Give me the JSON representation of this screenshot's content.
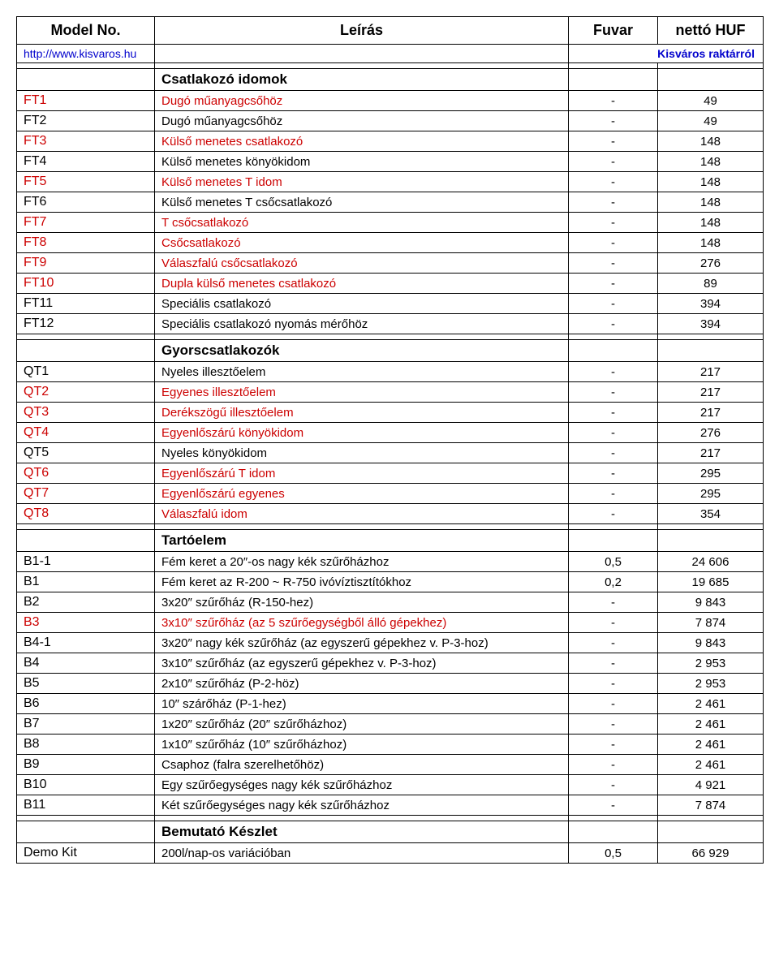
{
  "header": {
    "model": "Model No.",
    "desc": "Leírás",
    "fuvar": "Fuvar",
    "price": "nettó HUF",
    "link": "http://www.kisvaros.hu",
    "stock": "Kisváros raktárról"
  },
  "sections": [
    {
      "title": "Csatlakozó idomok",
      "rows": [
        {
          "model": "FT1",
          "desc": "Dugó műanyagcsőhöz",
          "fuvar": "-",
          "price": "49",
          "color": "red"
        },
        {
          "model": "FT2",
          "desc": "Dugó műanyagcsőhöz",
          "fuvar": "-",
          "price": "49",
          "color": "black"
        },
        {
          "model": "FT3",
          "desc": "Külső menetes csatlakozó",
          "fuvar": "-",
          "price": "148",
          "color": "red"
        },
        {
          "model": "FT4",
          "desc": "Külső menetes könyökidom",
          "fuvar": "-",
          "price": "148",
          "color": "black"
        },
        {
          "model": "FT5",
          "desc": "Külső menetes T idom",
          "fuvar": "-",
          "price": "148",
          "color": "red"
        },
        {
          "model": "FT6",
          "desc": "Külső menetes T csőcsatlakozó",
          "fuvar": "-",
          "price": "148",
          "color": "black"
        },
        {
          "model": "FT7",
          "desc": "T csőcsatlakozó",
          "fuvar": "-",
          "price": "148",
          "color": "red"
        },
        {
          "model": "FT8",
          "desc": "Csőcsatlakozó",
          "fuvar": "-",
          "price": "148",
          "color": "red"
        },
        {
          "model": "FT9",
          "desc": "Válaszfalú csőcsatlakozó",
          "fuvar": "-",
          "price": "276",
          "color": "red"
        },
        {
          "model": "FT10",
          "desc": "Dupla külső menetes csatlakozó",
          "fuvar": "-",
          "price": "89",
          "color": "red"
        },
        {
          "model": "FT11",
          "desc": "Speciális csatlakozó",
          "fuvar": "-",
          "price": "394",
          "color": "black"
        },
        {
          "model": "FT12",
          "desc": "Speciális csatlakozó nyomás mérőhöz",
          "fuvar": "-",
          "price": "394",
          "color": "black"
        }
      ]
    },
    {
      "title": "Gyorscsatlakozók",
      "rows": [
        {
          "model": "QT1",
          "desc": "Nyeles illesztőelem",
          "fuvar": "-",
          "price": "217",
          "color": "black"
        },
        {
          "model": "QT2",
          "desc": "Egyenes illesztőelem",
          "fuvar": "-",
          "price": "217",
          "color": "red"
        },
        {
          "model": "QT3",
          "desc": "Derékszögű illesztőelem",
          "fuvar": "-",
          "price": "217",
          "color": "red"
        },
        {
          "model": "QT4",
          "desc": "Egyenlőszárú könyökidom",
          "fuvar": "-",
          "price": "276",
          "color": "red"
        },
        {
          "model": "QT5",
          "desc": "Nyeles könyökidom",
          "fuvar": "-",
          "price": "217",
          "color": "black"
        },
        {
          "model": "QT6",
          "desc": "Egyenlőszárú T idom",
          "fuvar": "-",
          "price": "295",
          "color": "red"
        },
        {
          "model": "QT7",
          "desc": "Egyenlőszárú egyenes",
          "fuvar": "-",
          "price": "295",
          "color": "red"
        },
        {
          "model": "QT8",
          "desc": "Válaszfalú idom",
          "fuvar": "-",
          "price": "354",
          "color": "red"
        }
      ]
    },
    {
      "title": "Tartóelem",
      "rows": [
        {
          "model": "B1-1",
          "desc": "Fém keret a 20″-os nagy kék szűrőházhoz",
          "fuvar": "0,5",
          "price": "24 606",
          "color": "black"
        },
        {
          "model": "B1",
          "desc": "Fém keret az R-200 ~ R-750 ivóvíztisztítókhoz",
          "fuvar": "0,2",
          "price": "19 685",
          "color": "black"
        },
        {
          "model": "B2",
          "desc": "3x20″ szűrőház (R-150-hez)",
          "fuvar": "-",
          "price": "9 843",
          "color": "black"
        },
        {
          "model": "B3",
          "desc": "3x10″ szűrőház (az 5 szűrőegységből álló gépekhez)",
          "fuvar": "-",
          "price": "7 874",
          "color": "red"
        },
        {
          "model": "B4-1",
          "desc": "3x20″ nagy kék szűrőház (az egyszerű gépekhez v. P-3-hoz)",
          "fuvar": "-",
          "price": "9 843",
          "color": "black"
        },
        {
          "model": "B4",
          "desc": "3x10″ szűrőház (az egyszerű gépekhez v. P-3-hoz)",
          "fuvar": "-",
          "price": "2 953",
          "color": "black"
        },
        {
          "model": "B5",
          "desc": "2x10″ szűrőház (P-2-höz)",
          "fuvar": "-",
          "price": "2 953",
          "color": "black"
        },
        {
          "model": "B6",
          "desc": "10″ szárőház (P-1-hez)",
          "fuvar": "-",
          "price": "2 461",
          "color": "black"
        },
        {
          "model": "B7",
          "desc": "1x20″ szűrőház (20″ szűrőházhoz)",
          "fuvar": "-",
          "price": "2 461",
          "color": "black"
        },
        {
          "model": "B8",
          "desc": "1x10″ szűrőház (10″ szűrőházhoz)",
          "fuvar": "-",
          "price": "2 461",
          "color": "black"
        },
        {
          "model": "B9",
          "desc": "Csaphoz (falra szerelhetőhöz)",
          "fuvar": "-",
          "price": "2 461",
          "color": "black"
        },
        {
          "model": "B10",
          "desc": "Egy szűrőegységes nagy kék szűrőházhoz",
          "fuvar": "-",
          "price": "4 921",
          "color": "black"
        },
        {
          "model": "B11",
          "desc": "Két szűrőegységes nagy kék szűrőházhoz",
          "fuvar": "-",
          "price": "7 874",
          "color": "black"
        }
      ]
    },
    {
      "title": "Bemutató Készlet",
      "rows": [
        {
          "model": "Demo Kit",
          "desc": "200l/nap-os variációban",
          "fuvar": "0,5",
          "price": "66 929",
          "color": "black"
        }
      ]
    }
  ]
}
